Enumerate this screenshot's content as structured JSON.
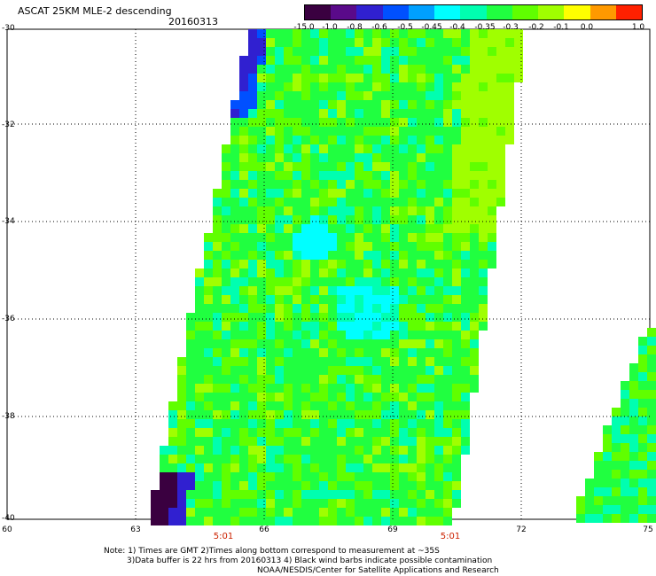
{
  "header": {
    "title": "ASCAT 25KM MLE-2 descending",
    "date": "20160313"
  },
  "colorbar": {
    "labels": [
      "-15.0",
      "-1.0",
      "-0.8",
      "-0.6",
      "-0.5",
      "-0.45",
      "-0.4",
      "-0.35",
      "-0.3",
      "-0.2",
      "-0.1",
      "0.0",
      "1.0"
    ],
    "colors": [
      "#3a0040",
      "#5a0a8a",
      "#3020d0",
      "#0050ff",
      "#00a0ff",
      "#00ffff",
      "#00ffb0",
      "#20ff40",
      "#60ff00",
      "#a0ff00",
      "#ffff00",
      "#ff9900",
      "#ff2000"
    ]
  },
  "axes": {
    "lat_labels": [
      "-30",
      "-32",
      "-34",
      "-36",
      "-38",
      "-40"
    ],
    "lon_labels": [
      "60",
      "63",
      "66",
      "69",
      "72",
      "75"
    ],
    "time_labels": [
      "5:01",
      "5:01"
    ]
  },
  "notes": {
    "line1": "Note: 1) Times are GMT 2)Times along bottom correspond to measurement at ~35S",
    "line2": "3)Data buffer is 22 hrs from 20160313 4) Black wind barbs indicate possible contamination",
    "line3": "NOAA/NESDIS/Center for Satellite Applications and Research"
  }
}
